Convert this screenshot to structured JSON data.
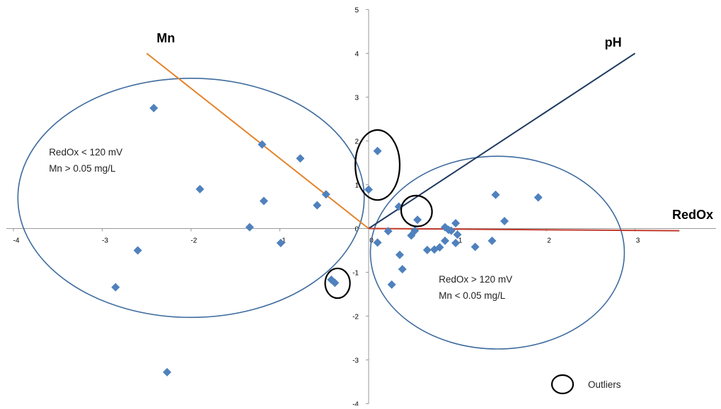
{
  "chart_data": {
    "type": "scatter",
    "title": "",
    "xlabel": "",
    "ylabel": "",
    "xlim": [
      -4,
      4
    ],
    "ylim": [
      -4,
      5
    ],
    "x_ticks": [
      "-4",
      "-3",
      "-2",
      "-1",
      "0",
      "1",
      "2",
      "3"
    ],
    "y_ticks": [
      "5",
      "4",
      "3",
      "2",
      "1",
      "0",
      "-1",
      "-2",
      "-3",
      "-4"
    ],
    "grid": false,
    "colors": {
      "points": "#4f81bd",
      "mn_vector": "#e3832a",
      "ph_vector": "#1f3a5f",
      "redox_vector": "#c0392b",
      "cluster_ellipse": "#3e6b9e",
      "outlier_ellipse": "#000000"
    },
    "points": [
      {
        "x": -2.42,
        "y": 2.75
      },
      {
        "x": -1.2,
        "y": 1.92
      },
      {
        "x": -0.77,
        "y": 1.6
      },
      {
        "x": -1.9,
        "y": 0.9
      },
      {
        "x": -1.18,
        "y": 0.63
      },
      {
        "x": -0.48,
        "y": 0.78
      },
      {
        "x": -0.58,
        "y": 0.53
      },
      {
        "x": -1.34,
        "y": 0.03
      },
      {
        "x": -2.6,
        "y": -0.5
      },
      {
        "x": -0.99,
        "y": -0.33
      },
      {
        "x": -2.85,
        "y": -1.34
      },
      {
        "x": -2.27,
        "y": -3.28
      },
      {
        "x": -0.42,
        "y": -1.17
      },
      {
        "x": -0.38,
        "y": -1.24
      },
      {
        "x": 0.1,
        "y": 1.77
      },
      {
        "x": 0.0,
        "y": 0.89
      },
      {
        "x": 0.34,
        "y": 0.5
      },
      {
        "x": 0.55,
        "y": 0.2
      },
      {
        "x": 0.1,
        "y": -0.32
      },
      {
        "x": 0.22,
        "y": -0.06
      },
      {
        "x": 0.48,
        "y": -0.16
      },
      {
        "x": 0.52,
        "y": -0.05
      },
      {
        "x": 0.35,
        "y": -0.6
      },
      {
        "x": 0.38,
        "y": -0.93
      },
      {
        "x": 0.26,
        "y": -1.28
      },
      {
        "x": 0.66,
        "y": -0.49
      },
      {
        "x": 0.74,
        "y": -0.48
      },
      {
        "x": 0.8,
        "y": -0.43
      },
      {
        "x": 0.86,
        "y": 0.03
      },
      {
        "x": 0.9,
        "y": -0.03
      },
      {
        "x": 0.93,
        "y": -0.05
      },
      {
        "x": 0.98,
        "y": 0.12
      },
      {
        "x": 1.0,
        "y": -0.14
      },
      {
        "x": 0.98,
        "y": -0.33
      },
      {
        "x": 0.86,
        "y": -0.28
      },
      {
        "x": 1.2,
        "y": -0.42
      },
      {
        "x": 1.39,
        "y": -0.28
      },
      {
        "x": 1.43,
        "y": 0.77
      },
      {
        "x": 1.53,
        "y": 0.17
      },
      {
        "x": 1.91,
        "y": 0.71
      }
    ],
    "vectors": [
      {
        "name": "Mn",
        "x": -2.5,
        "y": 4.0,
        "color_key": "mn_vector",
        "anchor": "end",
        "label_dx": 0.32,
        "label_dy": 0.25
      },
      {
        "name": "pH",
        "x": 3.0,
        "y": 4.0,
        "color_key": "ph_vector",
        "anchor": "end",
        "label_dx": -0.15,
        "label_dy": 0.15
      },
      {
        "name": "RedOx",
        "x": 3.5,
        "y": -0.05,
        "color_key": "redox_vector",
        "anchor": "middle",
        "label_dx": 0.15,
        "label_dy": 0.27
      }
    ],
    "annotations": [
      {
        "lines": [
          "RedOx < 120 mV",
          "Mn > 0.05 mg/L"
        ],
        "x": -3.6,
        "y": 1.67
      },
      {
        "lines": [
          "RedOx > 120 mV",
          "Mn < 0.05 mg/L"
        ],
        "x": 0.79,
        "y": -1.23
      }
    ],
    "cluster_ellipses": [
      {
        "cx": -2.0,
        "cy": 0.7,
        "rx": 1.95,
        "ry": 2.73
      },
      {
        "cx": 1.45,
        "cy": -0.55,
        "rx": 1.43,
        "ry": 2.2
      }
    ],
    "outlier_ellipses": [
      {
        "cx": 0.1,
        "cy": 1.45,
        "rx": 0.25,
        "ry": 0.8,
        "rotate": 0
      },
      {
        "cx": 0.54,
        "cy": 0.4,
        "rx": 0.17,
        "ry": 0.36,
        "rotate": -45
      },
      {
        "cx": -0.35,
        "cy": -1.25,
        "rx": 0.14,
        "ry": 0.34,
        "rotate": 0
      }
    ],
    "legend": {
      "label": "Outliers",
      "position": "bottom-right"
    }
  }
}
